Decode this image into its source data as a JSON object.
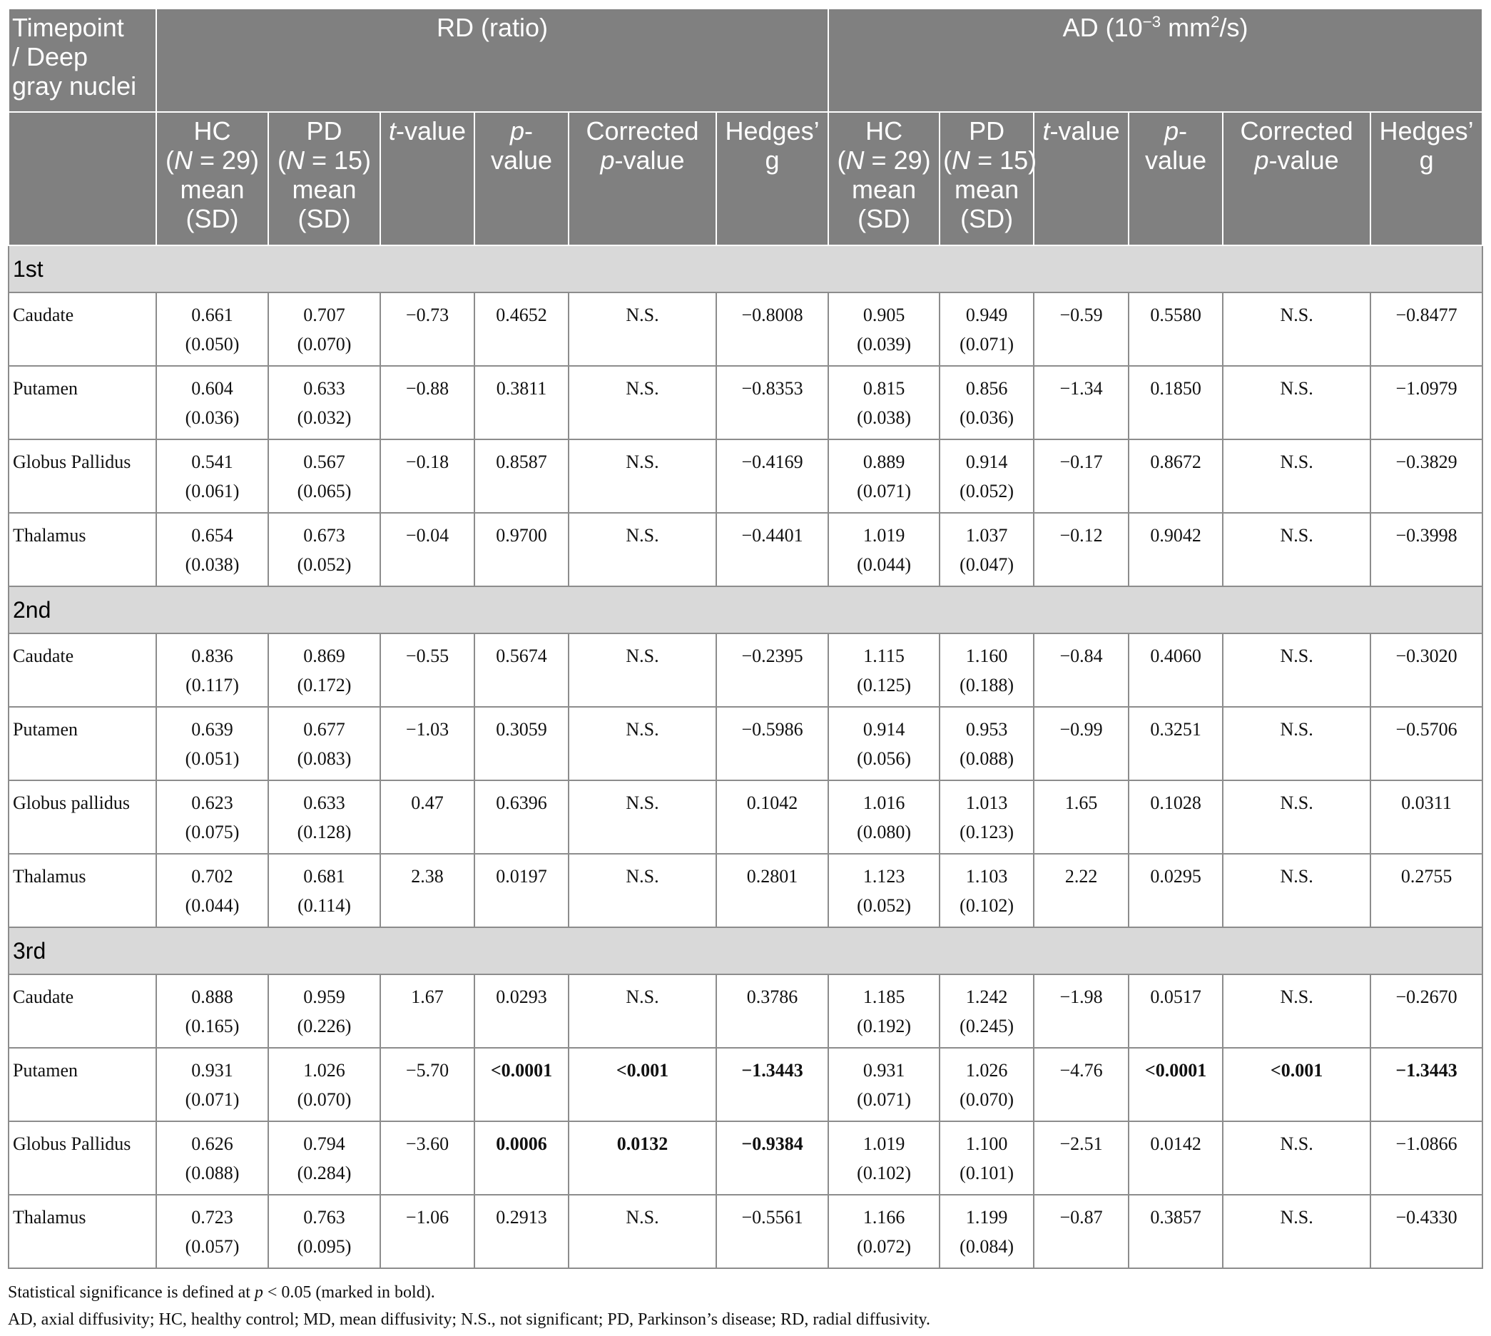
{
  "header": {
    "row1": [
      [
        [
          {
            "text": "Timepoint"
          }
        ],
        [
          {
            "text": "/ Deep"
          }
        ],
        [
          {
            "text": "gray nuclei"
          }
        ]
      ],
      [
        [
          {
            "text": "RD (ratio)"
          }
        ]
      ],
      [
        [
          {
            "text": "AD (10"
          },
          {
            "text": "−3",
            "sup": true
          },
          {
            "text": " mm"
          },
          {
            "text": "2",
            "sup": true
          },
          {
            "text": "/s)"
          }
        ]
      ]
    ],
    "row2": [
      [
        [
          {
            "text": "HC"
          }
        ],
        [
          {
            "text": "("
          },
          {
            "text": "N",
            "italic": true
          },
          {
            "text": " = 29)"
          }
        ],
        [
          {
            "text": "mean"
          }
        ],
        [
          {
            "text": "(SD)"
          }
        ]
      ],
      [
        [
          {
            "text": "PD"
          }
        ],
        [
          {
            "text": "("
          },
          {
            "text": "N",
            "italic": true
          },
          {
            "text": " = 15)"
          }
        ],
        [
          {
            "text": "mean"
          }
        ],
        [
          {
            "text": "(SD)"
          }
        ]
      ],
      [
        [
          {
            "text": "t",
            "italic": true
          },
          {
            "text": "-value"
          }
        ]
      ],
      [
        [
          {
            "text": "p",
            "italic": true
          },
          {
            "text": "-"
          }
        ],
        [
          {
            "text": "value"
          }
        ]
      ],
      [
        [
          {
            "text": "Corrected"
          }
        ],
        [
          {
            "text": "p",
            "italic": true
          },
          {
            "text": "-value"
          }
        ]
      ],
      [
        [
          {
            "text": "Hedges’"
          }
        ],
        [
          {
            "text": "g"
          }
        ]
      ],
      [
        [
          {
            "text": "HC"
          }
        ],
        [
          {
            "text": "("
          },
          {
            "text": "N",
            "italic": true
          },
          {
            "text": " = 29)"
          }
        ],
        [
          {
            "text": "mean"
          }
        ],
        [
          {
            "text": "(SD)"
          }
        ]
      ],
      [
        [
          {
            "text": "PD"
          }
        ],
        [
          {
            "text": "("
          },
          {
            "text": "N",
            "italic": true
          },
          {
            "text": " = 15)"
          }
        ],
        [
          {
            "text": "mean"
          }
        ],
        [
          {
            "text": "(SD)"
          }
        ]
      ],
      [
        [
          {
            "text": "t",
            "italic": true
          },
          {
            "text": "-value"
          }
        ]
      ],
      [
        [
          {
            "text": "p",
            "italic": true
          },
          {
            "text": "-"
          }
        ],
        [
          {
            "text": "value"
          }
        ]
      ],
      [
        [
          {
            "text": "Corrected"
          }
        ],
        [
          {
            "text": "p",
            "italic": true
          },
          {
            "text": "-value"
          }
        ]
      ],
      [
        [
          {
            "text": "Hedges’"
          }
        ],
        [
          {
            "text": "g"
          }
        ]
      ]
    ]
  },
  "groups": [
    {
      "label": "1st",
      "rows": [
        {
          "name": "Caudate",
          "cells": [
            [
              "0.661",
              "(0.050)"
            ],
            [
              "0.707",
              "(0.070)"
            ],
            "−0.73",
            "0.4652",
            "N.S.",
            "−0.8008",
            [
              "0.905",
              "(0.039)"
            ],
            [
              "0.949",
              "(0.071)"
            ],
            "−0.59",
            "0.5580",
            "N.S.",
            "−0.8477"
          ],
          "bold": []
        },
        {
          "name": "Putamen",
          "cells": [
            [
              "0.604",
              "(0.036)"
            ],
            [
              "0.633",
              "(0.032)"
            ],
            "−0.88",
            "0.3811",
            "N.S.",
            "−0.8353",
            [
              "0.815",
              "(0.038)"
            ],
            [
              "0.856",
              "(0.036)"
            ],
            "−1.34",
            "0.1850",
            "N.S.",
            "−1.0979"
          ],
          "bold": []
        },
        {
          "name": "Globus Pallidus",
          "cells": [
            [
              "0.541",
              "(0.061)"
            ],
            [
              "0.567",
              "(0.065)"
            ],
            "−0.18",
            "0.8587",
            "N.S.",
            "−0.4169",
            [
              "0.889",
              "(0.071)"
            ],
            [
              "0.914",
              "(0.052)"
            ],
            "−0.17",
            "0.8672",
            "N.S.",
            "−0.3829"
          ],
          "bold": []
        },
        {
          "name": "Thalamus",
          "cells": [
            [
              "0.654",
              "(0.038)"
            ],
            [
              "0.673",
              "(0.052)"
            ],
            "−0.04",
            "0.9700",
            "N.S.",
            "−0.4401",
            [
              "1.019",
              "(0.044)"
            ],
            [
              "1.037",
              "(0.047)"
            ],
            "−0.12",
            "0.9042",
            "N.S.",
            "−0.3998"
          ],
          "bold": []
        }
      ]
    },
    {
      "label": "2nd",
      "rows": [
        {
          "name": "Caudate",
          "cells": [
            [
              "0.836",
              "(0.117)"
            ],
            [
              "0.869",
              "(0.172)"
            ],
            "−0.55",
            "0.5674",
            "N.S.",
            "−0.2395",
            [
              "1.115",
              "(0.125)"
            ],
            [
              "1.160",
              "(0.188)"
            ],
            "−0.84",
            "0.4060",
            "N.S.",
            "−0.3020"
          ],
          "bold": []
        },
        {
          "name": "Putamen",
          "cells": [
            [
              "0.639",
              "(0.051)"
            ],
            [
              "0.677",
              "(0.083)"
            ],
            "−1.03",
            "0.3059",
            "N.S.",
            "−0.5986",
            [
              "0.914",
              "(0.056)"
            ],
            [
              "0.953",
              "(0.088)"
            ],
            "−0.99",
            "0.3251",
            "N.S.",
            "−0.5706"
          ],
          "bold": []
        },
        {
          "name": "Globus pallidus",
          "cells": [
            [
              "0.623",
              "(0.075)"
            ],
            [
              "0.633",
              "(0.128)"
            ],
            "0.47",
            "0.6396",
            "N.S.",
            "0.1042",
            [
              "1.016",
              "(0.080)"
            ],
            [
              "1.013",
              "(0.123)"
            ],
            "1.65",
            "0.1028",
            "N.S.",
            "0.0311"
          ],
          "bold": []
        },
        {
          "name": "Thalamus",
          "cells": [
            [
              "0.702",
              "(0.044)"
            ],
            [
              "0.681",
              "(0.114)"
            ],
            "2.38",
            "0.0197",
            "N.S.",
            "0.2801",
            [
              "1.123",
              "(0.052)"
            ],
            [
              "1.103",
              "(0.102)"
            ],
            "2.22",
            "0.0295",
            "N.S.",
            "0.2755"
          ],
          "bold": []
        }
      ]
    },
    {
      "label": "3rd",
      "rows": [
        {
          "name": "Caudate",
          "cells": [
            [
              "0.888",
              "(0.165)"
            ],
            [
              "0.959",
              "(0.226)"
            ],
            "1.67",
            "0.0293",
            "N.S.",
            "0.3786",
            [
              "1.185",
              "(0.192)"
            ],
            [
              "1.242",
              "(0.245)"
            ],
            "−1.98",
            "0.0517",
            "N.S.",
            "−0.2670"
          ],
          "bold": []
        },
        {
          "name": "Putamen",
          "cells": [
            [
              "0.931",
              "(0.071)"
            ],
            [
              "1.026",
              "(0.070)"
            ],
            "−5.70",
            "<0.0001",
            "<0.001",
            "−1.3443",
            [
              "0.931",
              "(0.071)"
            ],
            [
              "1.026",
              "(0.070)"
            ],
            "−4.76",
            "<0.0001",
            "<0.001",
            "−1.3443"
          ],
          "bold": [
            3,
            4,
            5,
            9,
            10,
            11
          ]
        },
        {
          "name": "Globus Pallidus",
          "cells": [
            [
              "0.626",
              "(0.088)"
            ],
            [
              "0.794",
              "(0.284)"
            ],
            "−3.60",
            "0.0006",
            "0.0132",
            "−0.9384",
            [
              "1.019",
              "(0.102)"
            ],
            [
              "1.100",
              "(0.101)"
            ],
            "−2.51",
            "0.0142",
            "N.S.",
            "−1.0866"
          ],
          "bold": [
            3,
            4,
            5
          ]
        },
        {
          "name": "Thalamus",
          "cells": [
            [
              "0.723",
              "(0.057)"
            ],
            [
              "0.763",
              "(0.095)"
            ],
            "−1.06",
            "0.2913",
            "N.S.",
            "−0.5561",
            [
              "1.166",
              "(0.072)"
            ],
            [
              "1.199",
              "(0.084)"
            ],
            "−0.87",
            "0.3857",
            "N.S.",
            "−0.4330"
          ],
          "bold": []
        }
      ]
    }
  ],
  "notes": [
    [
      {
        "text": "Statistical significance is defined at "
      },
      {
        "text": "p",
        "italic": true
      },
      {
        "text": " < 0.05 (marked in bold)."
      }
    ],
    [
      {
        "text": "AD, axial diffusivity; HC, healthy control; MD, mean diffusivity; N.S., not significant; PD, Parkinson’s disease; RD, radial diffusivity."
      }
    ]
  ]
}
